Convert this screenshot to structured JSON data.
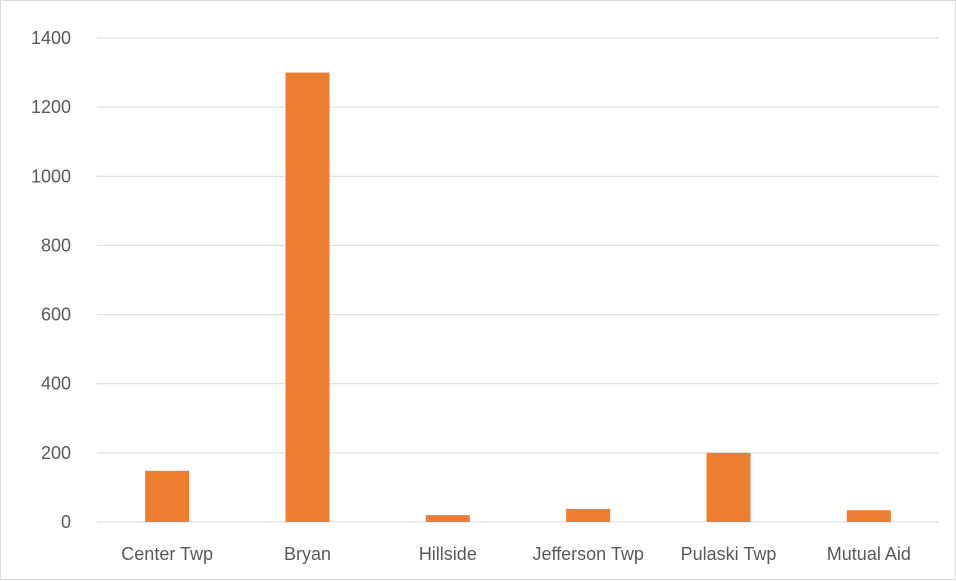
{
  "chart_data": {
    "type": "bar",
    "categories": [
      "Center Twp",
      "Bryan",
      "Hillside",
      "Jefferson Twp",
      "Pulaski Twp",
      "Mutual Aid"
    ],
    "values": [
      148,
      1300,
      20,
      38,
      200,
      34
    ],
    "ylim": [
      0,
      1400
    ],
    "yticks": [
      0,
      200,
      400,
      600,
      800,
      1000,
      1200,
      1400
    ],
    "grid": true,
    "bar_color": "#ed7d31",
    "grid_color": "#d9d9d9"
  }
}
